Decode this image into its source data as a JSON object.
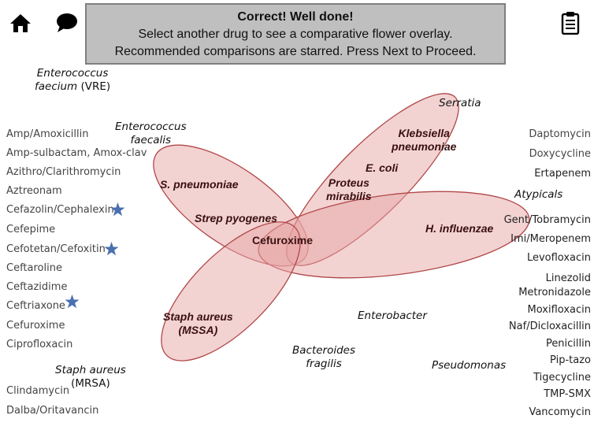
{
  "banner": {
    "line1": "Correct!  Well done!",
    "line2": "Select another drug to see a comparative flower overlay.",
    "line3": "Recommended comparisons are starred.  Press Next to Proceed."
  },
  "left_drugs": [
    {
      "label": "Amp/Amoxicillin",
      "starred": false
    },
    {
      "label": "Amp-sulbactam, Amox-clav",
      "starred": false
    },
    {
      "label": "Azithro/Clarithromycin",
      "starred": false
    },
    {
      "label": "Aztreonam",
      "starred": false
    },
    {
      "label": "Cefazolin/Cephalexin",
      "starred": true
    },
    {
      "label": "Cefepime",
      "starred": false
    },
    {
      "label": "Cefotetan/Cefoxitin",
      "starred": true
    },
    {
      "label": "Ceftaroline",
      "starred": false
    },
    {
      "label": "Ceftazidime",
      "starred": false
    },
    {
      "label": "Ceftriaxone",
      "starred": true
    },
    {
      "label": "Cefuroxime",
      "starred": false
    },
    {
      "label": "Ciprofloxacin",
      "starred": false
    },
    {
      "label": "Clindamycin",
      "starred": false
    },
    {
      "label": "Dalba/Oritavancin",
      "starred": false
    }
  ],
  "right_drugs": [
    "Daptomycin",
    "Doxycycline",
    "Ertapenem",
    "Gent/Tobramycin",
    "Imi/Meropenem",
    "Levofloxacin",
    "Linezolid",
    "Metronidazole",
    "Moxifloxacin",
    "Naf/Dicloxacillin",
    "Penicillin",
    "Pip-tazo",
    "Tigecycline",
    "TMP-SMX",
    "Vancomycin"
  ],
  "organisms": {
    "vre_l1": "Enterococcus",
    "vre_l2": "faecium",
    "vre_l2b": " (VRE)",
    "efae_l1": "Enterococcus",
    "efae_l2": "faecalis",
    "serratia": "Serratia",
    "atypicals": "Atypicals",
    "enterobacter": "Enterobacter",
    "bact_l1": "Bacteroides",
    "bact_l2": "fragilis",
    "pseudomonas": "Pseudomonas",
    "mrsa_l1": "Staph aureus",
    "mrsa_l2": "(MRSA)"
  },
  "covered": {
    "spneu": "S. pneumoniae",
    "strep": "Strep pyogenes",
    "staph_l1": "Staph aureus",
    "staph_l2": "(MSSA)",
    "kleb_l1": "Klebsiella",
    "kleb_l2": "pneumoniae",
    "ecoli": "E. coli",
    "proteus_l1": "Proteus",
    "proteus_l2": "mirabilis",
    "hinf": "H. influenzae"
  },
  "selected_drug": "Cefuroxime",
  "colors": {
    "petal_fill": "#e8a6a6",
    "petal_stroke": "#b04848",
    "star": "#4a6fb0",
    "banner": "#bfbfbf"
  }
}
